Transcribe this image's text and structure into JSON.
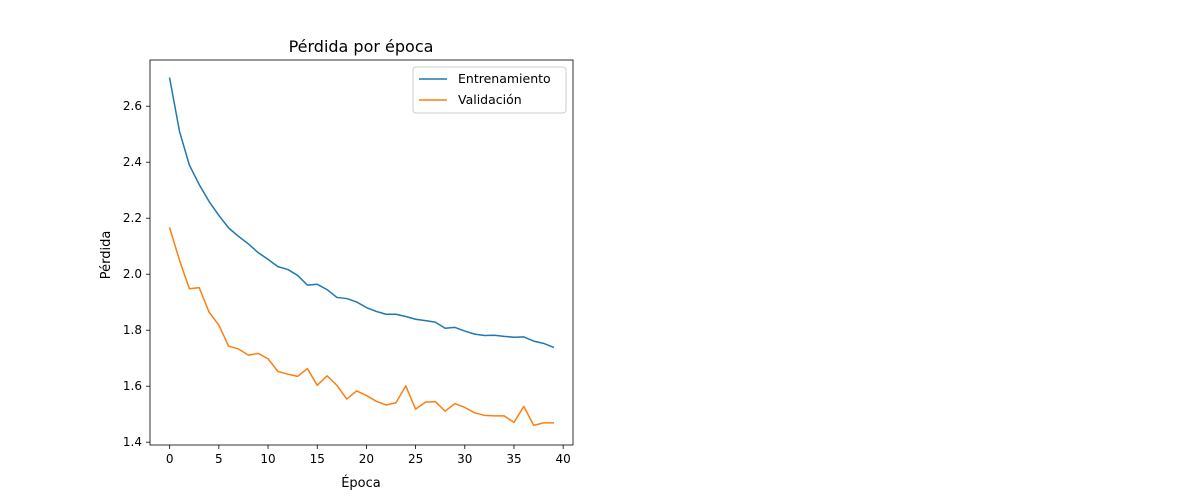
{
  "chart_data": {
    "type": "line",
    "title": "Pérdida por época",
    "xlabel": "Época",
    "ylabel": "Pérdida",
    "xlim": [
      -2,
      41
    ],
    "ylim": [
      1.39,
      2.765
    ],
    "xticks": [
      0,
      5,
      10,
      15,
      20,
      25,
      30,
      35,
      40
    ],
    "yticks": [
      1.4,
      1.6,
      1.8,
      2.0,
      2.2,
      2.4,
      2.6
    ],
    "ytick_labels": [
      "1.4",
      "1.6",
      "1.8",
      "2.0",
      "2.2",
      "2.4",
      "2.6"
    ],
    "grid": false,
    "legend_position": "top-right",
    "x": [
      0,
      1,
      2,
      3,
      4,
      5,
      6,
      7,
      8,
      9,
      10,
      11,
      12,
      13,
      14,
      15,
      16,
      17,
      18,
      19,
      20,
      21,
      22,
      23,
      24,
      25,
      26,
      27,
      28,
      29,
      30,
      31,
      32,
      33,
      34,
      35,
      36,
      37,
      38,
      39
    ],
    "series": [
      {
        "name": "Entrenamiento",
        "color": "#1f77b4",
        "values": [
          2.7,
          2.51,
          2.39,
          2.32,
          2.26,
          2.21,
          2.165,
          2.135,
          2.108,
          2.077,
          2.053,
          2.027,
          2.017,
          1.996,
          1.961,
          1.964,
          1.945,
          1.917,
          1.913,
          1.901,
          1.881,
          1.867,
          1.857,
          1.857,
          1.849,
          1.839,
          1.834,
          1.829,
          1.807,
          1.81,
          1.797,
          1.786,
          1.781,
          1.782,
          1.778,
          1.775,
          1.776,
          1.761,
          1.753,
          1.739
        ]
      },
      {
        "name": "Validación",
        "color": "#ff7f0e",
        "values": [
          2.165,
          2.05,
          1.948,
          1.952,
          1.865,
          1.818,
          1.743,
          1.733,
          1.711,
          1.717,
          1.698,
          1.653,
          1.643,
          1.635,
          1.663,
          1.603,
          1.637,
          1.603,
          1.554,
          1.583,
          1.567,
          1.546,
          1.533,
          1.541,
          1.601,
          1.518,
          1.543,
          1.545,
          1.511,
          1.538,
          1.524,
          1.505,
          1.496,
          1.494,
          1.494,
          1.471,
          1.528,
          1.46,
          1.469,
          1.469
        ]
      }
    ]
  }
}
